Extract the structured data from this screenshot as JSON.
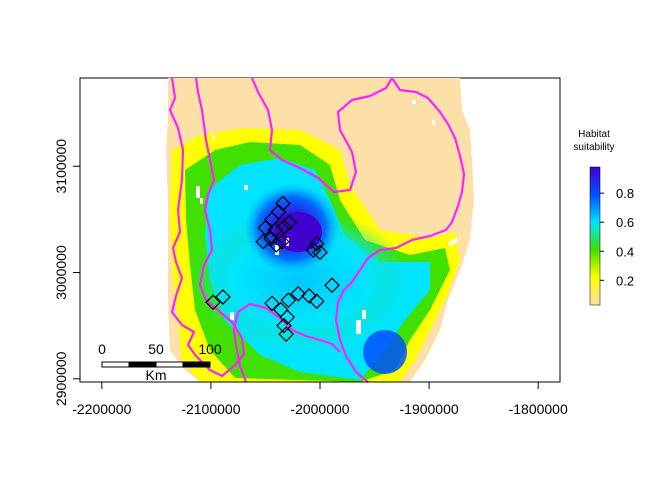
{
  "map": {
    "x_axis": {
      "ticks": [
        {
          "value": -2200000,
          "label": "-2200000"
        },
        {
          "value": -2100000,
          "label": "-2100000"
        },
        {
          "value": -2000000,
          "label": "-2000000"
        },
        {
          "value": -1900000,
          "label": "-1900000"
        },
        {
          "value": -1800000,
          "label": "-1800000"
        }
      ],
      "range": [
        -2220000,
        -1780000
      ]
    },
    "y_axis": {
      "ticks": [
        {
          "value": 2900000,
          "label": "2900000"
        },
        {
          "value": 3000000,
          "label": "3000000"
        },
        {
          "value": 3100000,
          "label": "3100000"
        }
      ],
      "range": [
        2897000,
        3183000
      ]
    },
    "legend": {
      "title_line1": "Habitat",
      "title_line2": "suitability",
      "ticks": [
        "0.2",
        "0.4",
        "0.6",
        "0.8"
      ],
      "tick_values": [
        0.2,
        0.4,
        0.6,
        0.8
      ],
      "range": [
        0.03,
        0.98
      ],
      "colors": [
        "#fddfa8",
        "#ffff00",
        "#40e000",
        "#00e4ff",
        "#0050ff",
        "#4000d0"
      ]
    },
    "scale_bar": {
      "labels": [
        "0",
        "50",
        "100"
      ],
      "unit": "Km"
    },
    "boundary_color": "#ff20ff",
    "survey_points": [
      [
        -2034000,
        3065000
      ],
      [
        -2038000,
        3057000
      ],
      [
        -2044000,
        3050000
      ],
      [
        -2050000,
        3042000
      ],
      [
        -2041000,
        3040000
      ],
      [
        -2033000,
        3043000
      ],
      [
        -2028000,
        3047000
      ],
      [
        -2045000,
        3032000
      ],
      [
        -2052000,
        3029000
      ],
      [
        -2040000,
        3026000
      ],
      [
        -2035000,
        3029000
      ],
      [
        -2003000,
        3027000
      ],
      [
        -2006000,
        3021000
      ],
      [
        -2000000,
        3019000
      ],
      [
        -1989000,
        2988000
      ],
      [
        -2020000,
        2980000
      ],
      [
        -2010000,
        2978000
      ],
      [
        -2003000,
        2973000
      ],
      [
        -2029000,
        2974000
      ],
      [
        -2044000,
        2971000
      ],
      [
        -2036000,
        2965000
      ],
      [
        -2030000,
        2958000
      ],
      [
        -2033000,
        2950000
      ],
      [
        -2031000,
        2942000
      ],
      [
        -2089000,
        2977000
      ],
      [
        -2098000,
        2972000
      ]
    ]
  }
}
